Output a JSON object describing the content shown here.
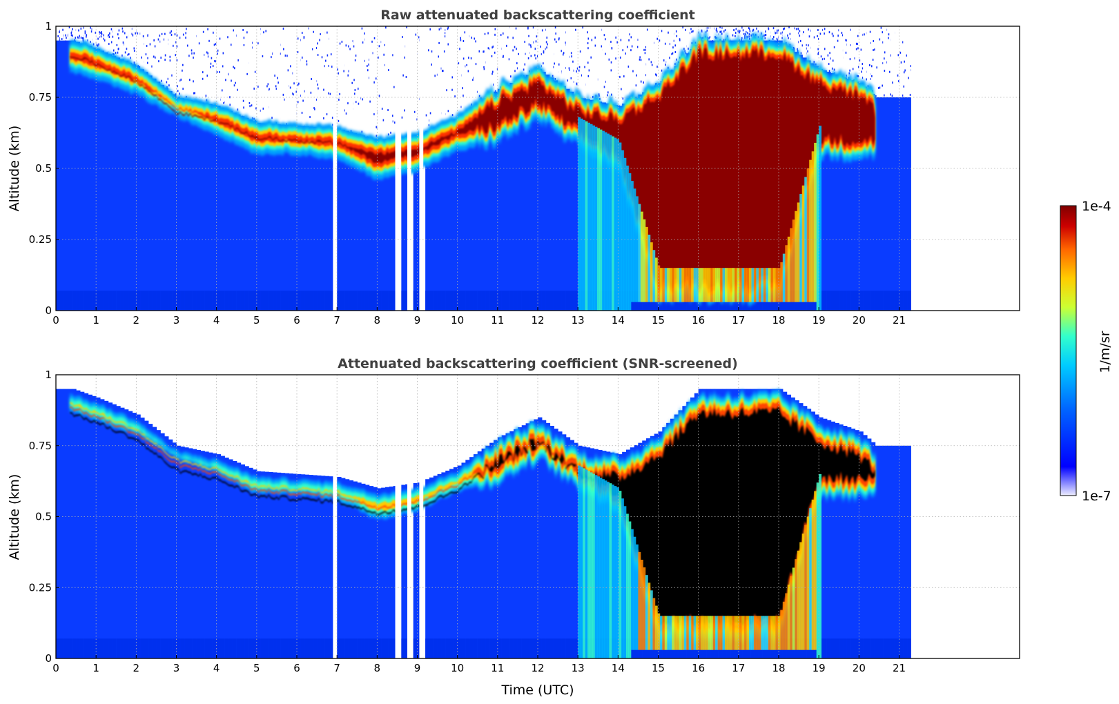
{
  "chart_data": [
    {
      "type": "heatmap",
      "title": "Raw attenuated backscattering coefficient",
      "xlabel": "",
      "ylabel": "Altitude (km)",
      "xlim": [
        0,
        24
      ],
      "ylim": [
        0,
        1
      ],
      "x_ticks": [
        "0",
        "1",
        "2",
        "3",
        "4",
        "5",
        "6",
        "7",
        "8",
        "9",
        "10",
        "11",
        "12",
        "13",
        "14",
        "15",
        "16",
        "17",
        "18",
        "19",
        "20",
        "21"
      ],
      "y_ticks": [
        "0",
        "0.25",
        "0.5",
        "0.75",
        "1"
      ],
      "grid": true,
      "data_time_range_utc": [
        0,
        21.3
      ],
      "data_gaps_utc": [
        [
          6.9,
          7.0
        ],
        [
          8.45,
          8.6
        ],
        [
          8.75,
          8.85
        ],
        [
          9.05,
          9.15
        ]
      ],
      "layer_top_km": [
        [
          0.4,
          0.95
        ],
        [
          1,
          0.92
        ],
        [
          2,
          0.86
        ],
        [
          3,
          0.75
        ],
        [
          4,
          0.72
        ],
        [
          5,
          0.66
        ],
        [
          6,
          0.65
        ],
        [
          7,
          0.64
        ],
        [
          8,
          0.6
        ],
        [
          9,
          0.62
        ],
        [
          10,
          0.68
        ],
        [
          11,
          0.78
        ],
        [
          12,
          0.85
        ],
        [
          13,
          0.75
        ],
        [
          14,
          0.72
        ],
        [
          15,
          0.8
        ],
        [
          16,
          0.95
        ],
        [
          17,
          0.95
        ],
        [
          18,
          0.95
        ],
        [
          19,
          0.85
        ],
        [
          20,
          0.8
        ],
        [
          20.4,
          0.75
        ]
      ],
      "layer_base_km": [
        [
          0.4,
          0.85
        ],
        [
          1,
          0.82
        ],
        [
          2,
          0.77
        ],
        [
          3,
          0.69
        ],
        [
          4,
          0.63
        ],
        [
          5,
          0.56
        ],
        [
          6,
          0.56
        ],
        [
          7,
          0.54
        ],
        [
          8,
          0.47
        ],
        [
          9,
          0.5
        ],
        [
          10,
          0.57
        ],
        [
          11,
          0.6
        ],
        [
          12,
          0.68
        ],
        [
          13,
          0.58
        ],
        [
          14,
          0.5
        ],
        [
          15,
          0.05
        ],
        [
          16,
          0.05
        ],
        [
          17,
          0.05
        ],
        [
          18,
          0.05
        ],
        [
          19,
          0.55
        ],
        [
          20,
          0.55
        ],
        [
          20.4,
          0.55
        ]
      ]
    },
    {
      "type": "heatmap",
      "title": "Attenuated backscattering coefficient (SNR-screened)",
      "xlabel": "Time (UTC)",
      "ylabel": "Altitude (km)",
      "xlim": [
        0,
        24
      ],
      "ylim": [
        0,
        1
      ],
      "x_ticks": [
        "0",
        "1",
        "2",
        "3",
        "4",
        "5",
        "6",
        "7",
        "8",
        "9",
        "10",
        "11",
        "12",
        "13",
        "14",
        "15",
        "16",
        "17",
        "18",
        "19",
        "20",
        "21"
      ],
      "y_ticks": [
        "0",
        "0.25",
        "0.5",
        "0.75",
        "1"
      ],
      "grid": true,
      "data_time_range_utc": [
        0,
        21.3
      ],
      "data_gaps_utc": [
        [
          6.9,
          7.0
        ],
        [
          8.45,
          8.6
        ],
        [
          8.75,
          8.85
        ],
        [
          9.05,
          9.15
        ]
      ]
    }
  ],
  "colorbar": {
    "label": "1/m/sr",
    "max_label": "1e-4",
    "min_label": "1e-7",
    "scale": "log",
    "range": [
      1e-07,
      0.0001
    ],
    "colormap": [
      "#eeeeff",
      "#0000ff",
      "#0066ff",
      "#00ccff",
      "#33ffcc",
      "#ccff33",
      "#ffcc00",
      "#ff6600",
      "#cc0000",
      "#800000"
    ]
  },
  "colors": {
    "saturated_core_screened": "#000000",
    "title_text": "#404040"
  }
}
